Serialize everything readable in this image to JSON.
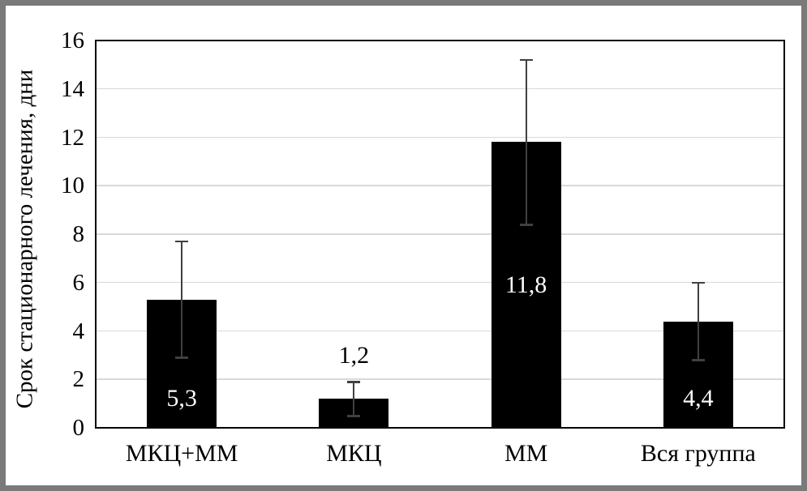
{
  "chart_data": {
    "type": "bar",
    "title": "",
    "categories": [
      "МКЦ+ММ",
      "МКЦ",
      "ММ",
      "Вся группа"
    ],
    "values": [
      5.3,
      1.2,
      11.8,
      4.4
    ],
    "value_labels": [
      "5,3",
      "1,2",
      "11,8",
      "4,4"
    ],
    "value_label_placement": [
      "inside-base",
      "outside-end",
      "inside-center",
      "inside-base"
    ],
    "error_bars": {
      "high": [
        7.7,
        1.9,
        15.2,
        6.0
      ],
      "low": [
        2.9,
        0.5,
        8.4,
        2.8
      ]
    },
    "xlabel": "",
    "ylabel": "Срок стационарного лечения, дни",
    "ylim": [
      0,
      16
    ],
    "yticks": [
      0,
      2,
      4,
      6,
      8,
      10,
      12,
      14,
      16
    ],
    "grid": true,
    "legend": "none",
    "colors": {
      "bar": "#000000",
      "error_bar": "#404040",
      "gridline": "#d9d9d9",
      "axis": "#000000",
      "label_inside": "#ffffff",
      "label_outside": "#000000",
      "background": "#ffffff",
      "frame": "#7a7a7a"
    }
  }
}
